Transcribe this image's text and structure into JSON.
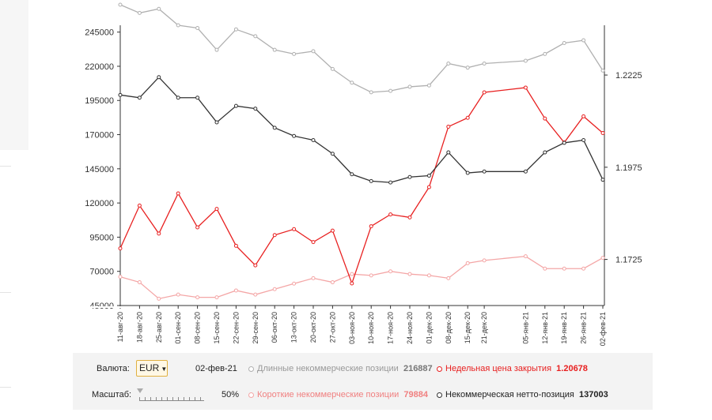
{
  "controls": {
    "currency_label": "Валюта:",
    "currency_value": "EUR",
    "date": "02-фев-21",
    "scale_label": "Масштаб:",
    "scale_value": "50%",
    "legend": [
      {
        "label": "Длинные некоммерческие позиции",
        "value": "216887",
        "color": "#b0b0b0"
      },
      {
        "label": "Короткие некоммерческие позиции",
        "value": "79884",
        "color": "#f4a6a6"
      },
      {
        "label": "Недельная цена закрытия",
        "value": "1.20678",
        "color": "#e82020"
      },
      {
        "label": "Некоммерческая нетто-позиция",
        "value": "137003",
        "color": "#333333"
      }
    ]
  },
  "chart_data": {
    "type": "line",
    "x": [
      "11-авг-20",
      "18-авг-20",
      "25-авг-20",
      "01-сен-20",
      "08-сен-20",
      "15-сен-20",
      "22-сен-20",
      "29-сен-20",
      "06-окт-20",
      "13-окт-20",
      "20-окт-20",
      "27-окт-20",
      "03-ноя-20",
      "10-ноя-20",
      "17-ноя-20",
      "24-ноя-20",
      "01-дек-20",
      "08-дек-20",
      "15-дек-20",
      "21-дек-20",
      "05-янв-21",
      "12-янв-21",
      "19-янв-21",
      "26-янв-21",
      "02-фев-21"
    ],
    "x_dates": [
      "2020-08-11",
      "2020-08-18",
      "2020-08-25",
      "2020-09-01",
      "2020-09-08",
      "2020-09-15",
      "2020-09-22",
      "2020-09-29",
      "2020-10-06",
      "2020-10-13",
      "2020-10-20",
      "2020-10-27",
      "2020-11-03",
      "2020-11-10",
      "2020-11-17",
      "2020-11-24",
      "2020-12-01",
      "2020-12-08",
      "2020-12-15",
      "2020-12-21",
      "2021-01-05",
      "2021-01-12",
      "2021-01-19",
      "2021-01-26",
      "2021-02-02"
    ],
    "y_left_ticks": [
      "245000",
      "220000",
      "195000",
      "170000",
      "145000",
      "120000",
      "95000",
      "70000",
      "45000"
    ],
    "y_left_lim": [
      45000,
      250000
    ],
    "y_right_ticks": [
      "1.2225",
      "1.1975",
      "1.1725"
    ],
    "y_right_lim": [
      1.16,
      1.236
    ],
    "grid": false,
    "series": [
      {
        "name": "Длинные некоммерческие позиции",
        "axis": "left",
        "color": "#b0b0b0",
        "values": [
          265000,
          259000,
          262000,
          250000,
          248000,
          232000,
          247000,
          242000,
          232000,
          229000,
          231000,
          218000,
          208000,
          201000,
          202000,
          205000,
          206000,
          222000,
          219000,
          222000,
          224000,
          229000,
          237000,
          239000,
          216887
        ]
      },
      {
        "name": "Короткие некоммерческие позиции",
        "axis": "left",
        "color": "#f4a6a6",
        "values": [
          66000,
          62000,
          50000,
          53000,
          51000,
          51000,
          56000,
          53000,
          57000,
          61000,
          65000,
          62000,
          68000,
          67000,
          70000,
          68000,
          67000,
          65000,
          76000,
          78000,
          81000,
          72000,
          72000,
          72000,
          79884
        ]
      },
      {
        "name": "Недельная цена закрытия",
        "axis": "right",
        "color": "#e82020",
        "values": [
          1.1755,
          1.1871,
          1.1795,
          1.1904,
          1.1812,
          1.1862,
          1.1762,
          1.1709,
          1.1791,
          1.1807,
          1.1772,
          1.1803,
          1.166,
          1.1815,
          1.1847,
          1.1839,
          1.1921,
          1.2085,
          1.2109,
          1.2178,
          1.2191,
          1.2107,
          1.2042,
          1.2113,
          1.20678
        ]
      },
      {
        "name": "Некоммерческая нетто-позиция",
        "axis": "left",
        "color": "#333333",
        "values": [
          199000,
          197000,
          212000,
          197000,
          197000,
          179000,
          191000,
          189000,
          175000,
          169000,
          166000,
          156000,
          141000,
          136000,
          135000,
          139000,
          140000,
          157000,
          142000,
          143000,
          143000,
          157000,
          164000,
          166000,
          137003
        ]
      }
    ]
  }
}
